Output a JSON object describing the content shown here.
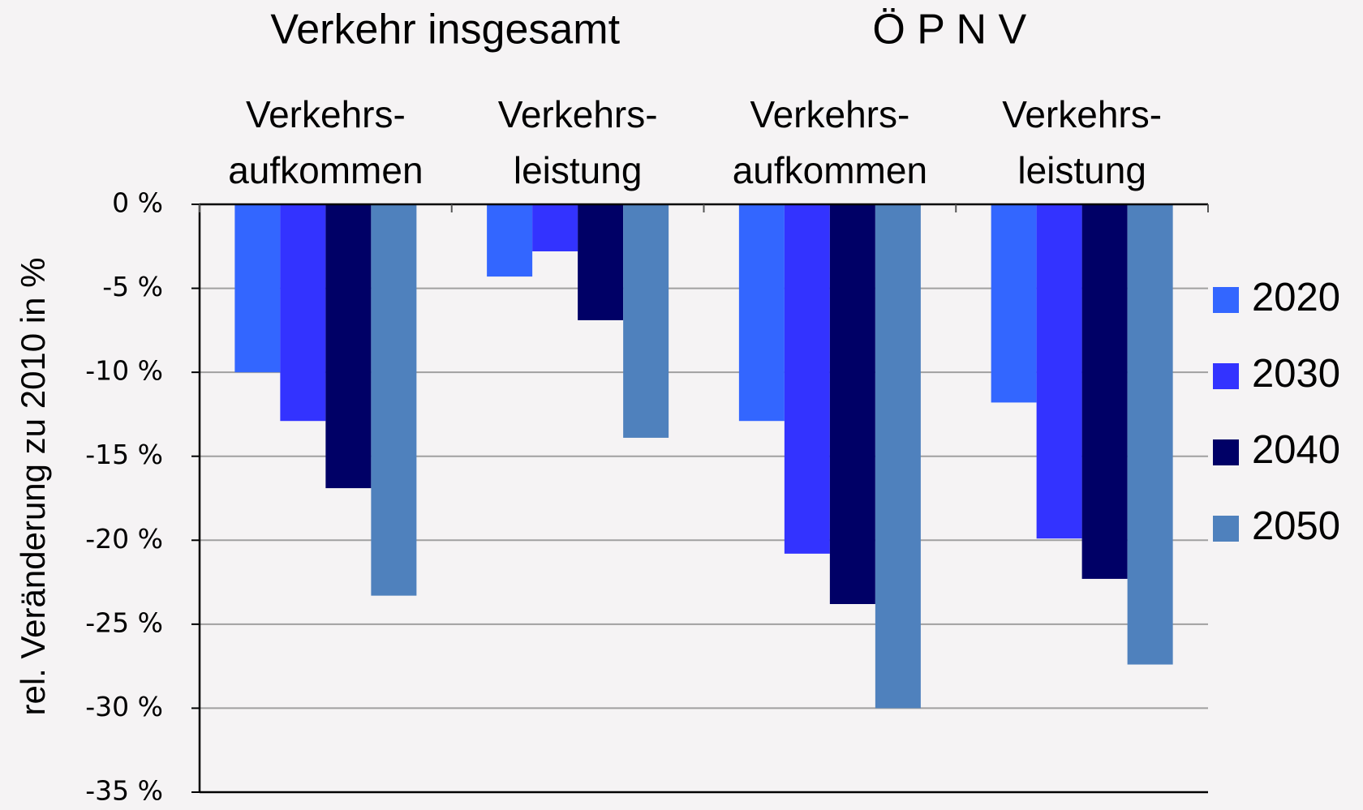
{
  "chart_data": {
    "type": "bar",
    "y_label": "rel. Veränderung zu 2010 in %",
    "groups": [
      "Verkehr insgesamt",
      "Ö P N V"
    ],
    "categories": [
      [
        "Verkehrs-",
        "aufkommen"
      ],
      [
        "Verkehrs-",
        "leistung"
      ],
      [
        "Verkehrs-",
        "aufkommen"
      ],
      [
        "Verkehrs-",
        "leistung"
      ]
    ],
    "series": [
      {
        "name": "2020",
        "color": "#3366ff",
        "values": [
          -10,
          -4.3,
          -12.9,
          -11.8
        ]
      },
      {
        "name": "2030",
        "color": "#3333ff",
        "values": [
          -12.9,
          -2.8,
          -20.8,
          -19.9
        ]
      },
      {
        "name": "2040",
        "color": "#000066",
        "values": [
          -16.9,
          -6.9,
          -23.8,
          -22.3
        ]
      },
      {
        "name": "2050",
        "color": "#4f81bd",
        "values": [
          -23.3,
          -13.9,
          -30,
          -27.4
        ]
      }
    ],
    "ylim": [
      -35,
      0
    ],
    "yticks": [
      {
        "value": 0,
        "label": "0 %"
      },
      {
        "value": -5,
        "label": "-5 %"
      },
      {
        "value": -10,
        "label": "-10 %"
      },
      {
        "value": -15,
        "label": "-15 %"
      },
      {
        "value": -20,
        "label": "-20 %"
      },
      {
        "value": -25,
        "label": "-25 %"
      },
      {
        "value": -30,
        "label": "-30 %"
      },
      {
        "value": -35,
        "label": "-35 %"
      }
    ],
    "grid": true,
    "legend": "right"
  }
}
